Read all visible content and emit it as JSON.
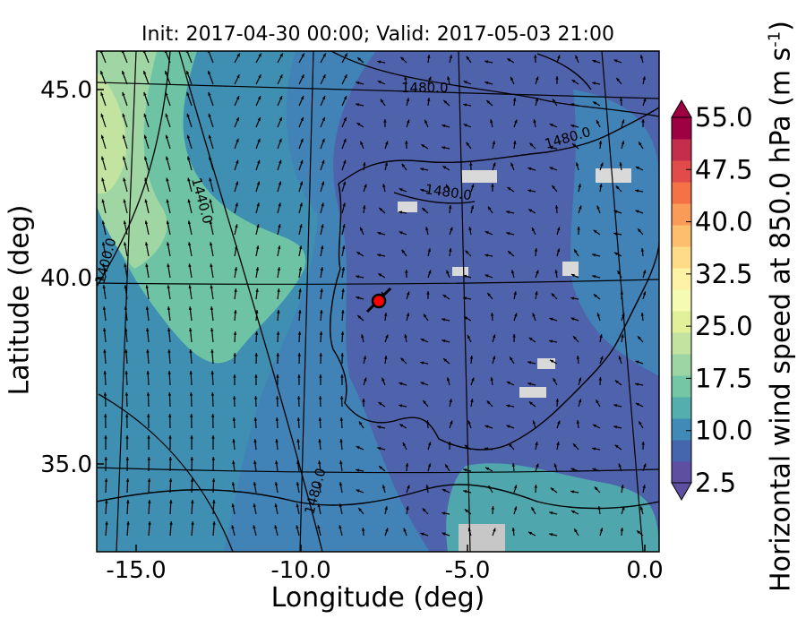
{
  "title": "Init: 2017-04-30 00:00; Valid: 2017-05-03 21:00",
  "xlabel": "Longitude (deg)",
  "ylabel": "Latitude (deg)",
  "x_ticks": [
    "-15.0",
    "-10.0",
    "-5.0",
    "0.0"
  ],
  "y_ticks": [
    "45.0",
    "40.0",
    "35.0"
  ],
  "colorbar": {
    "label": "Horizontal wind speed at 850.0 hPa (m s",
    "label_exponent": "-1",
    "label_close": ")",
    "tick_labels": [
      "55.0",
      "47.5",
      "40.0",
      "32.5",
      "25.0",
      "17.5",
      "10.0",
      "2.5"
    ],
    "colors": [
      "#5e4fa2",
      "#4466ad",
      "#3f8ab6",
      "#54aead",
      "#74c6a5",
      "#9ed5a4",
      "#c2e4a0",
      "#e2f199",
      "#f5fbb2",
      "#fef2a6",
      "#fddb87",
      "#fdbf6e",
      "#fa9b58",
      "#f47245",
      "#e14c4a",
      "#c42e4c",
      "#9e0142"
    ],
    "min": 2.5,
    "max": 55.0,
    "extend": "both"
  },
  "contour_labels": [
    "1480.0",
    "1480.0",
    "1480.0",
    "1440.0",
    "1400.0",
    "1480.0"
  ],
  "station_marker": {
    "color": "#ff0000",
    "lon": -7.7,
    "lat": 39.3
  }
}
